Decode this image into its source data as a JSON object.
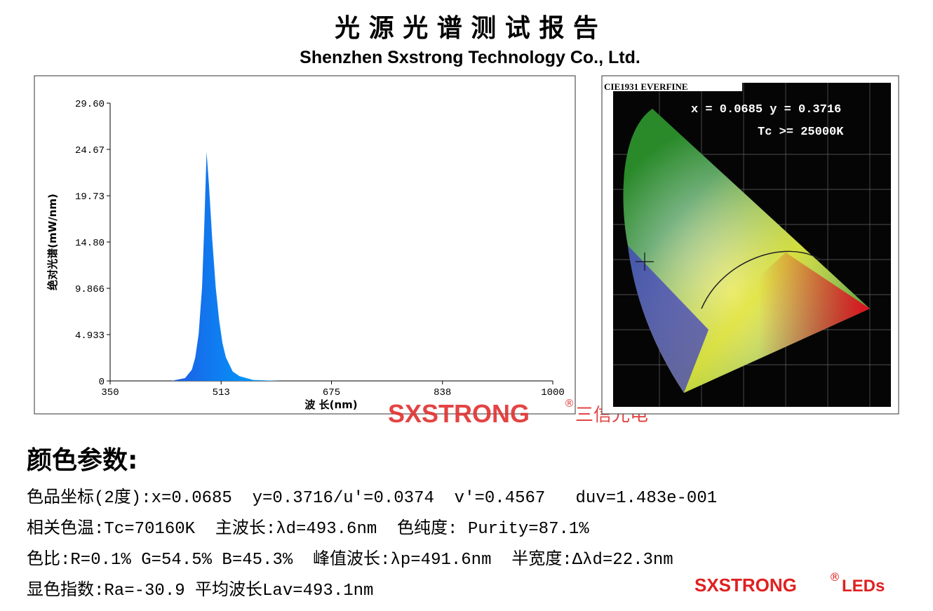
{
  "header": {
    "title": "光 源 光 谱 测 试 报 告",
    "subtitle": "Shenzhen Sxstrong Technology Co., Ltd."
  },
  "chart_data": {
    "type": "area",
    "x_label": "波 长(nm)",
    "y_label": "绝对光谱(mW/nm)",
    "x": [
      350,
      440,
      460,
      470,
      475,
      480,
      485,
      488,
      491.6,
      495,
      500,
      505,
      510,
      515,
      520,
      530,
      540,
      560,
      600,
      700,
      800,
      1000
    ],
    "values": [
      0,
      0,
      0.3,
      1.2,
      2.5,
      5,
      10,
      16,
      24.4,
      21,
      15,
      10,
      6.5,
      4,
      2.5,
      1,
      0.5,
      0.1,
      0,
      0,
      0,
      0
    ],
    "xlim": [
      350,
      1000
    ],
    "xticks": [
      350,
      513,
      675,
      838,
      1000
    ],
    "ylim": [
      0,
      29.6
    ],
    "yticks": [
      {
        "value": 29.6,
        "label": "29.60"
      },
      24.67,
      19.73,
      {
        "value": 14.8,
        "label": "14.80"
      },
      9.866,
      4.933,
      0
    ]
  },
  "cie": {
    "title": "CIE1931 EVERFINE",
    "coords": "x = 0.0685 y = 0.3716",
    "tc": "Tc >= 25000K"
  },
  "watermark": {
    "brand": "SXSTRONG",
    "reg": "®",
    "cn": "三信光电"
  },
  "params": {
    "title": "颜色参数:",
    "lines": [
      "色品坐标(2度):x=0.0685  y=0.3716/u'=0.0374  v'=0.4567   duv=1.483e-001",
      "相关色温:Tc=70160K  主波长:λd=493.6nm  色纯度: Purity=87.1%",
      "色比:R=0.1% G=54.5% B=45.3%  峰值波长:λp=491.6nm  半宽度:Δλd=22.3nm",
      "显色指数:Ra=-30.9 平均波长Lav=493.1nm"
    ]
  },
  "logo": {
    "brand": "SXSTRONG",
    "reg": "®",
    "suffix": "LEDs"
  }
}
